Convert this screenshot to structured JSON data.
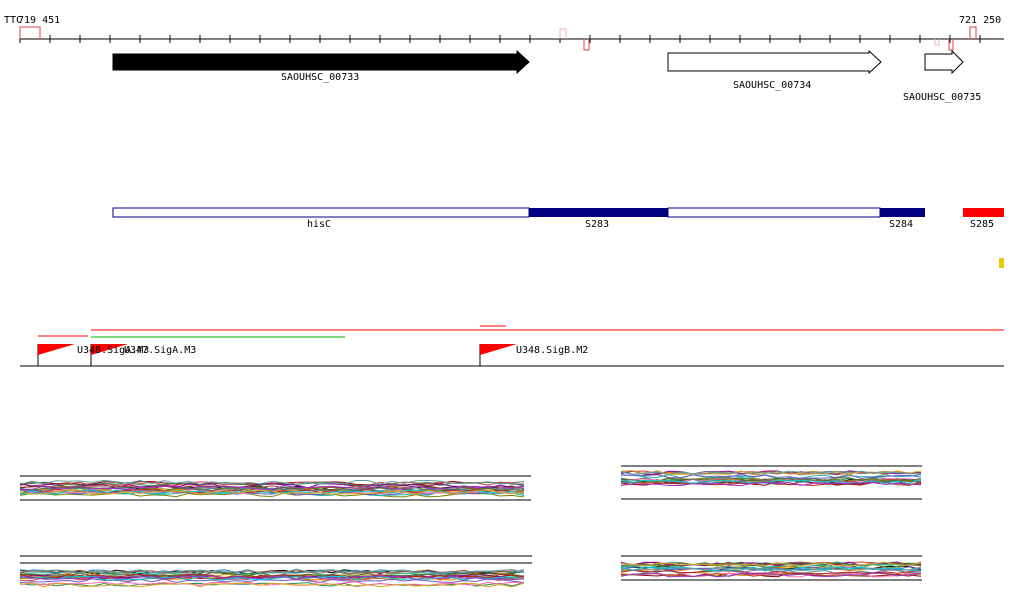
{
  "ruler": {
    "left_label": "TTC",
    "start_coord": "719 451",
    "end_coord": "721 250"
  },
  "genes": [
    {
      "name": "SAOUHSC_00733",
      "strand": "+",
      "filled": true
    },
    {
      "name": "SAOUHSC_00734",
      "strand": "+",
      "filled": false
    },
    {
      "name": "SAOUHSC_00735",
      "strand": "+",
      "filled": false
    }
  ],
  "segments": [
    {
      "name": "hisC",
      "style": "outline-blue"
    },
    {
      "name": "S283",
      "style": "navy"
    },
    {
      "name": "S284",
      "style": "navy"
    },
    {
      "name": "S285",
      "style": "red"
    }
  ],
  "promoters": [
    {
      "label": "U348.SigA.M3"
    },
    {
      "label": "U347.SigA.M3"
    },
    {
      "label": "U348.SigB.M2"
    }
  ],
  "colors": {
    "gene_fill": "#000000",
    "segment_outline": "#000080",
    "segment_fill": "#000080",
    "segment_highlight": "#ff0000",
    "promoter_flag": "#ff0000",
    "green_line": "#00b000",
    "marker_yellow": "#e8c800",
    "tick_red": "#e04040"
  }
}
